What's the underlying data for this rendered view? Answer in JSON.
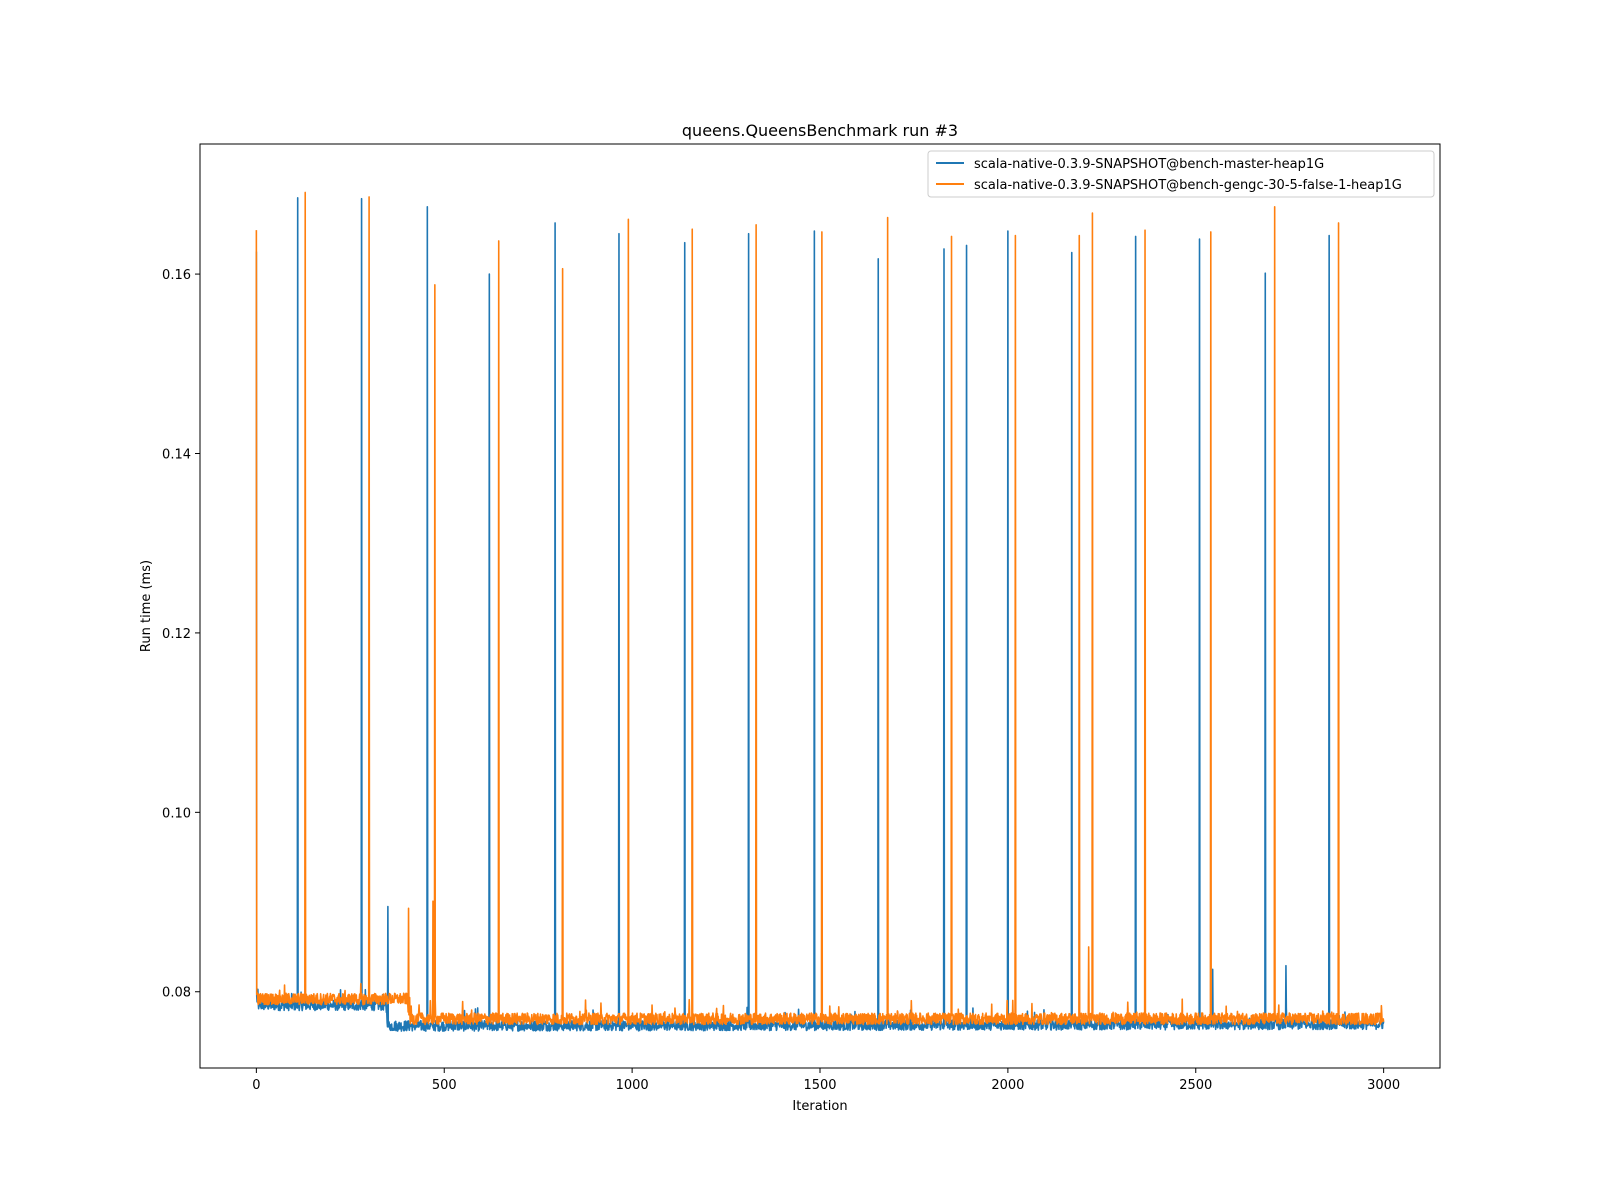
{
  "chart_data": {
    "type": "line",
    "title": "queens.QueensBenchmark run #3",
    "xlabel": "Iteration",
    "ylabel": "Run time (ms)",
    "xlim": [
      -150,
      3150
    ],
    "ylim": [
      0.0715,
      0.1745
    ],
    "xticks": [
      0,
      500,
      1000,
      1500,
      2000,
      2500,
      3000
    ],
    "yticks": [
      0.08,
      0.1,
      0.12,
      0.14,
      0.16
    ],
    "ytick_labels": [
      "0.08",
      "0.10",
      "0.12",
      "0.14",
      "0.16"
    ],
    "grid": false,
    "legend_position": "top-right",
    "iterations": 3000,
    "series": [
      {
        "name": "scala-native-0.3.9-SNAPSHOT@bench-master-heap1G",
        "color": "#1f77b4",
        "baseline": [
          [
            0,
            0.0795
          ],
          [
            5,
            0.0785
          ],
          [
            345,
            0.0785
          ],
          [
            350,
            0.0762
          ],
          [
            430,
            0.0762
          ],
          [
            3000,
            0.0764
          ]
        ],
        "noise": 0.0012,
        "spikes": [
          [
            0,
            0.1625
          ],
          [
            110,
            0.1685
          ],
          [
            280,
            0.1684
          ],
          [
            350,
            0.0895
          ],
          [
            455,
            0.1675
          ],
          [
            620,
            0.16
          ],
          [
            795,
            0.1657
          ],
          [
            965,
            0.1645
          ],
          [
            1140,
            0.1635
          ],
          [
            1310,
            0.1645
          ],
          [
            1485,
            0.1648
          ],
          [
            1655,
            0.1617
          ],
          [
            1830,
            0.1628
          ],
          [
            1890,
            0.1632
          ],
          [
            2000,
            0.1648
          ],
          [
            2170,
            0.1624
          ],
          [
            2340,
            0.1642
          ],
          [
            2510,
            0.1639
          ],
          [
            2545,
            0.0825
          ],
          [
            2685,
            0.1601
          ],
          [
            2740,
            0.0829
          ],
          [
            2855,
            0.1643
          ]
        ]
      },
      {
        "name": "scala-native-0.3.9-SNAPSHOT@bench-gengc-30-5-false-1-heap1G",
        "color": "#ff7f0e",
        "baseline": [
          [
            0,
            0.08
          ],
          [
            5,
            0.0792
          ],
          [
            400,
            0.0792
          ],
          [
            410,
            0.077
          ],
          [
            3000,
            0.077
          ]
        ],
        "noise": 0.0013,
        "spikes": [
          [
            0,
            0.1649
          ],
          [
            130,
            0.1691
          ],
          [
            300,
            0.1686
          ],
          [
            405,
            0.0893
          ],
          [
            470,
            0.0901
          ],
          [
            475,
            0.1588
          ],
          [
            645,
            0.1637
          ],
          [
            815,
            0.1606
          ],
          [
            990,
            0.1661
          ],
          [
            1160,
            0.165
          ],
          [
            1330,
            0.1655
          ],
          [
            1505,
            0.1647
          ],
          [
            1680,
            0.1663
          ],
          [
            1850,
            0.1642
          ],
          [
            2020,
            0.1643
          ],
          [
            2190,
            0.1643
          ],
          [
            2215,
            0.085
          ],
          [
            2225,
            0.1668
          ],
          [
            2365,
            0.1649
          ],
          [
            2540,
            0.1647
          ],
          [
            2710,
            0.1675
          ],
          [
            2880,
            0.1657
          ]
        ]
      }
    ]
  }
}
